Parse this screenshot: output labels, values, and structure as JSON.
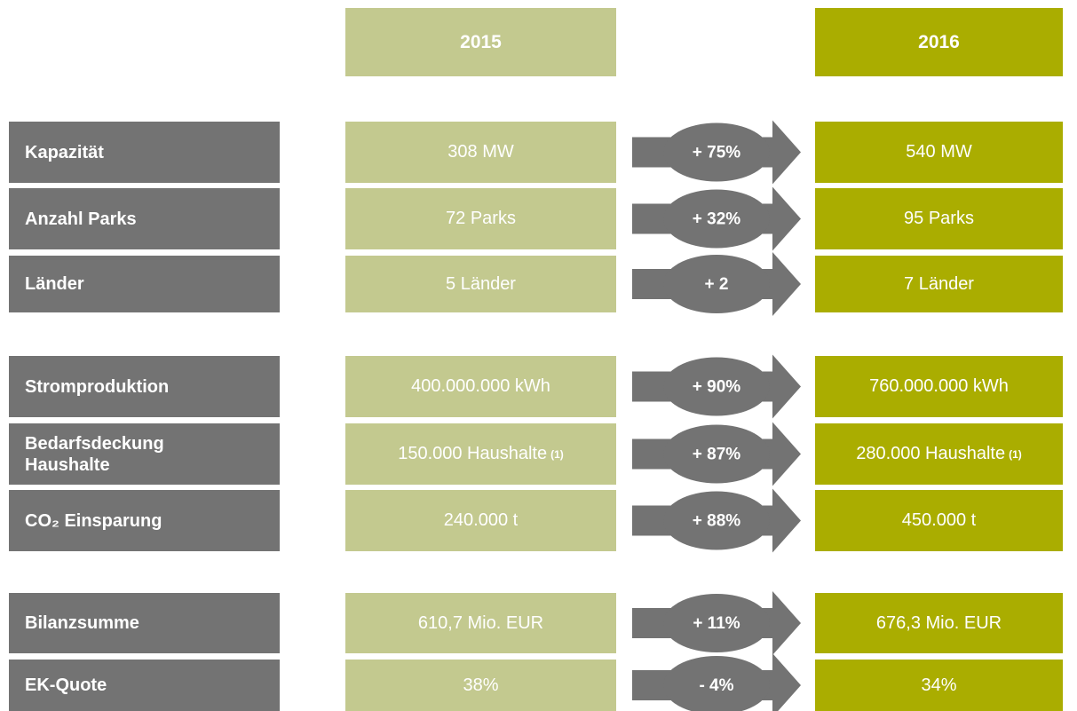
{
  "header": {
    "year_left": "2015",
    "year_right": "2016"
  },
  "rows": [
    {
      "label": "Kapazität",
      "left": "308 MW",
      "change": "+ 75%",
      "right": "540 MW"
    },
    {
      "label": "Anzahl Parks",
      "left": "72 Parks",
      "change": "+ 32%",
      "right": "95 Parks"
    },
    {
      "label": "Länder",
      "left": "5 Länder",
      "change": "+ 2",
      "right": "7 Länder"
    },
    {
      "label": "Stromproduktion",
      "left": "400.000.000 kWh",
      "change": "+ 90%",
      "right": "760.000.000 kWh"
    },
    {
      "label": "Bedarfsdeckung Haushalte",
      "left": "150.000 Haushalte",
      "left_note": "(1)",
      "change": "+ 87%",
      "right": "280.000 Haushalte",
      "right_note": "(1)"
    },
    {
      "label": "CO₂ Einsparung",
      "left": "240.000 t",
      "change": "+ 88%",
      "right": "450.000 t"
    },
    {
      "label": "Bilanzsumme",
      "left": "610,7 Mio. EUR",
      "change": "+ 11%",
      "right": "676,3 Mio. EUR"
    },
    {
      "label": "EK-Quote",
      "left": "38%",
      "change": "- 4%",
      "right": "34%"
    }
  ]
}
